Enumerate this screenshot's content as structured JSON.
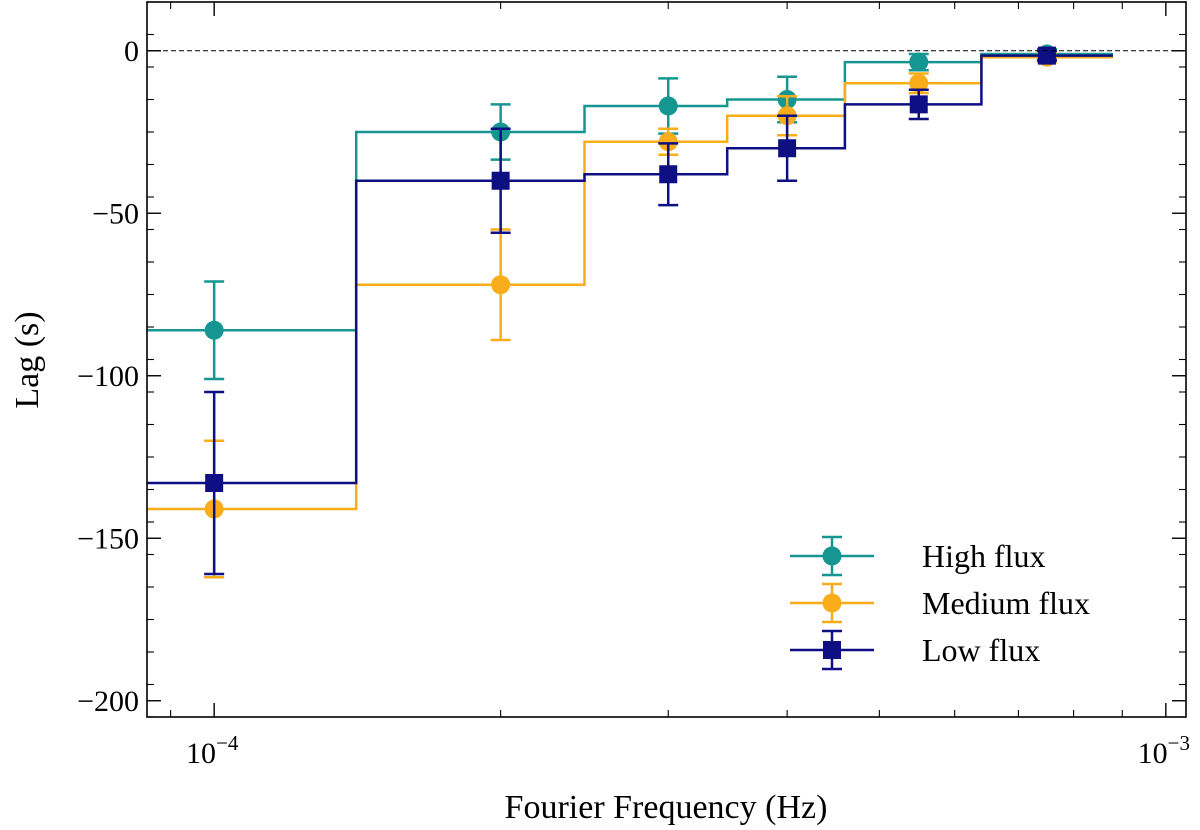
{
  "chart_data": {
    "type": "line",
    "xlabel": "Fourier Frequency (Hz)",
    "ylabel": "Lag (s)",
    "xscale": "log",
    "xlim": [
      8.5e-05,
      0.00105
    ],
    "ylim": [
      -205,
      15
    ],
    "yticks": [
      0,
      -50,
      -100,
      -150,
      -200
    ],
    "ytick_labels": [
      "0",
      "−50",
      "−100",
      "−150",
      "−200"
    ],
    "xtick_labels": [
      {
        "value": 0.0001,
        "base": "10",
        "exp": "−4"
      },
      {
        "value": 0.001,
        "base": "10",
        "exp": "−3"
      }
    ],
    "zero_line": true,
    "legend_position": "bottom-right",
    "series": [
      {
        "name": "High flux",
        "color": "#159690",
        "marker": "circle",
        "x": [
          0.0001,
          0.0002,
          0.0003,
          0.0004,
          0.00055,
          0.00075
        ],
        "y": [
          -86,
          -25,
          -17,
          -15,
          -3.5,
          -1
        ],
        "yerr": [
          15,
          8.5,
          8.5,
          7,
          2.5,
          1.5
        ],
        "bin_edges": [
          8.5e-05,
          0.000141,
          0.000245,
          0.000346,
          0.00046,
          0.00064,
          0.00088
        ]
      },
      {
        "name": "Medium flux",
        "color": "#f9ad1b",
        "marker": "circle",
        "x": [
          0.0001,
          0.0002,
          0.0003,
          0.0004,
          0.00055,
          0.00075
        ],
        "y": [
          -141,
          -72,
          -28,
          -20,
          -10,
          -2
        ],
        "yerr": [
          21,
          17,
          4,
          6,
          3,
          1.5
        ],
        "bin_edges": [
          8.5e-05,
          0.000141,
          0.000245,
          0.000346,
          0.00046,
          0.00064,
          0.00088
        ]
      },
      {
        "name": "Low flux",
        "color": "#0d0f82",
        "marker": "square",
        "x": [
          0.0001,
          0.0002,
          0.0003,
          0.0004,
          0.00055,
          0.00075
        ],
        "y": [
          -133,
          -40,
          -38,
          -30,
          -16.5,
          -1.5
        ],
        "yerr": [
          28,
          16,
          9.5,
          10,
          4.5,
          1.5
        ],
        "bin_edges": [
          8.5e-05,
          0.000141,
          0.000245,
          0.000346,
          0.00046,
          0.00064,
          0.00088
        ]
      }
    ]
  }
}
